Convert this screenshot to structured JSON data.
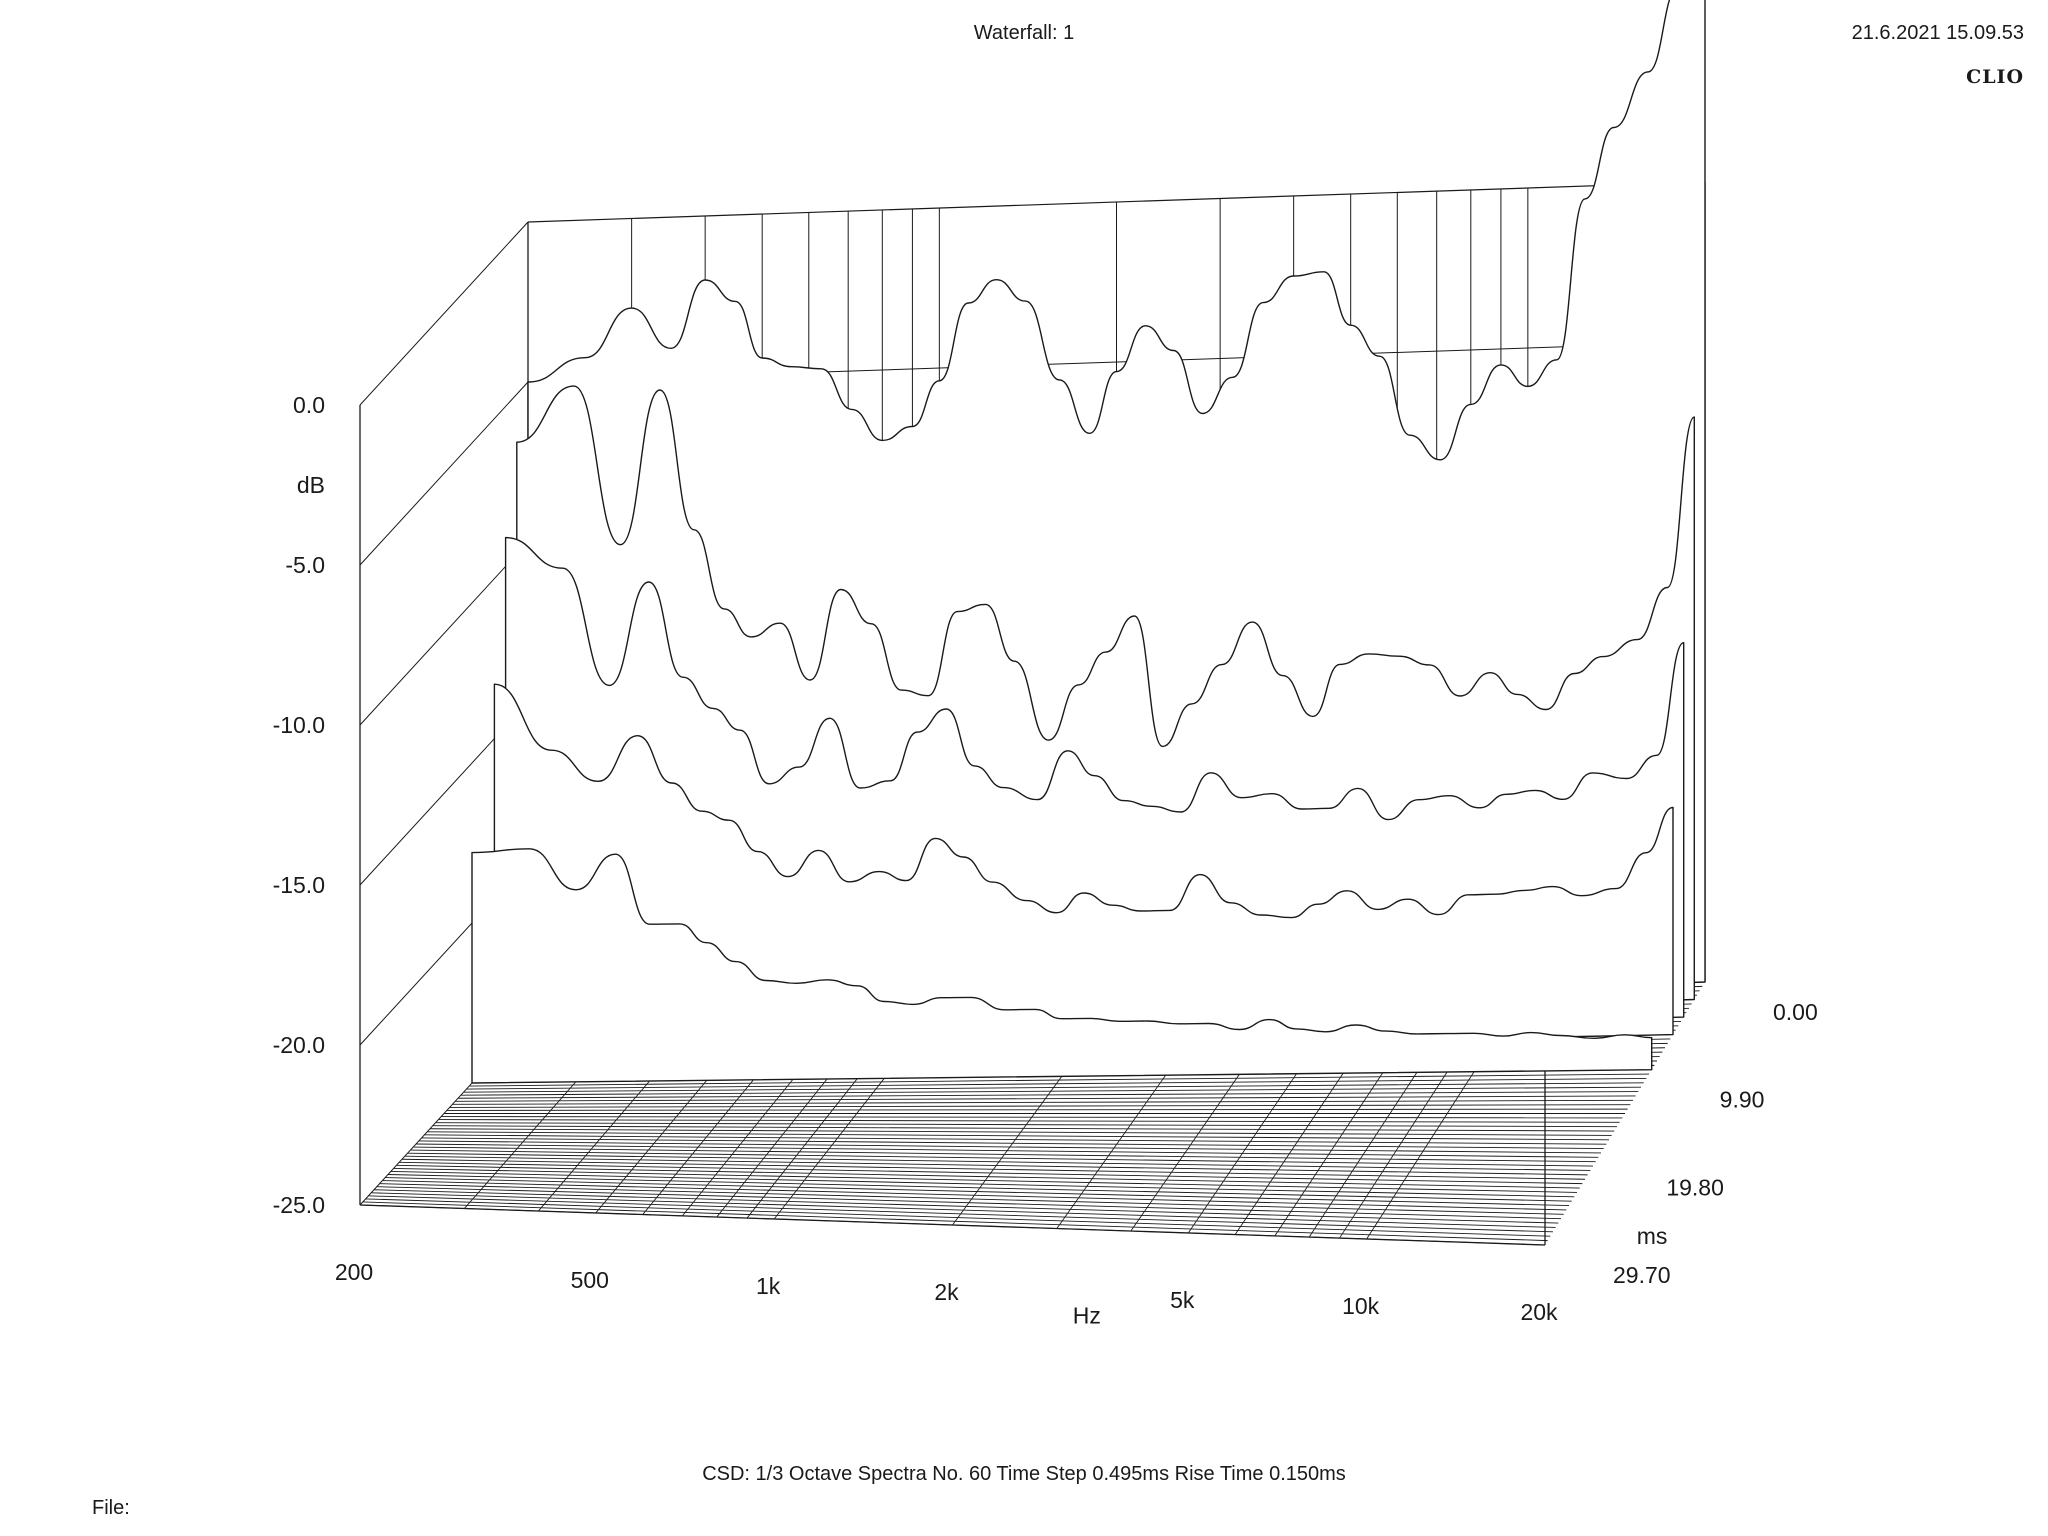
{
  "header": {
    "title": "Waterfall: 1",
    "timestamp": "21.6.2021 15.09.53",
    "brand": "CLIO"
  },
  "footer": {
    "info": "CSD:   1/3 Octave   Spectra No. 60   Time Step 0.495ms   Rise Time 0.150ms",
    "file_label": "File:"
  },
  "chart_data": {
    "type": "waterfall",
    "title": "Waterfall: 1",
    "xlabel": "Hz",
    "ylabel": "dB",
    "zlabel": "ms",
    "x_scale": "log",
    "xlim": [
      200,
      20000
    ],
    "ylim": [
      -25,
      0
    ],
    "zlim": [
      0,
      29.7
    ],
    "x_ticks": [
      "200",
      "500",
      "1k",
      "2k",
      "5k",
      "10k",
      "20k"
    ],
    "y_ticks": [
      "0.0",
      "-5.0",
      "-10.0",
      "-15.0",
      "-20.0",
      "-25.0"
    ],
    "z_ticks": [
      "0.00",
      "9.90",
      "19.80",
      "29.70"
    ],
    "spectra_count": 60,
    "time_step_ms": 0.495,
    "rise_time_ms": 0.15,
    "freq_hz": [
      200,
      250,
      300,
      350,
      400,
      450,
      500,
      560,
      630,
      710,
      800,
      900,
      1000,
      1120,
      1250,
      1400,
      1600,
      1800,
      2000,
      2240,
      2500,
      2800,
      3150,
      3550,
      4000,
      4500,
      5000,
      5600,
      6300,
      7100,
      8000,
      9000,
      10000,
      11200,
      12500,
      14000,
      16000,
      18000,
      20000
    ],
    "series": [
      {
        "time_ms": 0.0,
        "values": [
          -5.0,
          -4.3,
          -2.8,
          -4.1,
          -2.0,
          -2.7,
          -4.5,
          -4.8,
          -4.9,
          -6.2,
          -7.2,
          -6.8,
          -5.4,
          -3.0,
          -2.3,
          -3.0,
          -5.5,
          -7.2,
          -5.3,
          -3.9,
          -4.7,
          -6.7,
          -5.6,
          -3.3,
          -2.5,
          -2.4,
          -4.1,
          -5.1,
          -7.6,
          -8.4,
          -6.7,
          -5.5,
          -6.2,
          -5.4,
          -0.4,
          1.8,
          3.5,
          6.1,
          7.1
        ]
      },
      {
        "time_ms": 1.98,
        "values": [
          -6.5,
          -4.8,
          -9.8,
          -5.0,
          -9.4,
          -11.9,
          -12.8,
          -12.4,
          -14.2,
          -11.4,
          -12.5,
          -14.6,
          -14.8,
          -12.2,
          -12.0,
          -13.8,
          -16.3,
          -14.6,
          -13.6,
          -12.5,
          -16.6,
          -15.3,
          -14.1,
          -12.8,
          -14.5,
          -15.8,
          -14.2,
          -13.9,
          -14.0,
          -14.3,
          -15.3,
          -14.6,
          -15.3,
          -15.8,
          -14.7,
          -14.2,
          -13.7,
          -12.1,
          -6.8
        ]
      },
      {
        "time_ms": 3.96,
        "values": [
          -9.1,
          -10.1,
          -13.8,
          -10.6,
          -13.6,
          -14.6,
          -15.3,
          -17.0,
          -16.5,
          -15.0,
          -17.2,
          -17.0,
          -15.5,
          -14.8,
          -16.6,
          -17.3,
          -17.7,
          -16.2,
          -17.0,
          -17.8,
          -18.0,
          -18.2,
          -17.0,
          -17.8,
          -17.7,
          -18.2,
          -18.2,
          -17.6,
          -18.6,
          -18.0,
          -17.9,
          -18.3,
          -17.9,
          -17.8,
          -18.1,
          -17.3,
          -17.5,
          -16.8,
          -13.3
        ]
      },
      {
        "time_ms": 5.94,
        "values": [
          -13.3,
          -15.4,
          -16.4,
          -15.0,
          -16.5,
          -17.4,
          -17.7,
          -18.7,
          -19.5,
          -18.7,
          -19.7,
          -19.4,
          -19.7,
          -18.4,
          -19.0,
          -19.8,
          -20.4,
          -20.8,
          -20.2,
          -20.6,
          -20.8,
          -20.8,
          -19.7,
          -20.6,
          -21.0,
          -21.1,
          -20.7,
          -20.3,
          -20.9,
          -20.6,
          -21.1,
          -20.5,
          -20.5,
          -20.4,
          -20.3,
          -20.6,
          -20.4,
          -19.3,
          -17.9
        ]
      },
      {
        "time_ms": 9.9,
        "values": [
          -17.8,
          -17.7,
          -19.0,
          -17.9,
          -20.1,
          -20.1,
          -20.7,
          -21.3,
          -21.9,
          -22.0,
          -21.9,
          -22.1,
          -22.6,
          -22.7,
          -22.5,
          -22.5,
          -22.9,
          -22.9,
          -23.2,
          -23.2,
          -23.3,
          -23.3,
          -23.4,
          -23.4,
          -23.6,
          -23.3,
          -23.6,
          -23.7,
          -23.5,
          -23.7,
          -23.8,
          -23.8,
          -23.8,
          -23.9,
          -23.8,
          -23.9,
          -24.0,
          -23.9,
          -24.0
        ]
      }
    ]
  }
}
